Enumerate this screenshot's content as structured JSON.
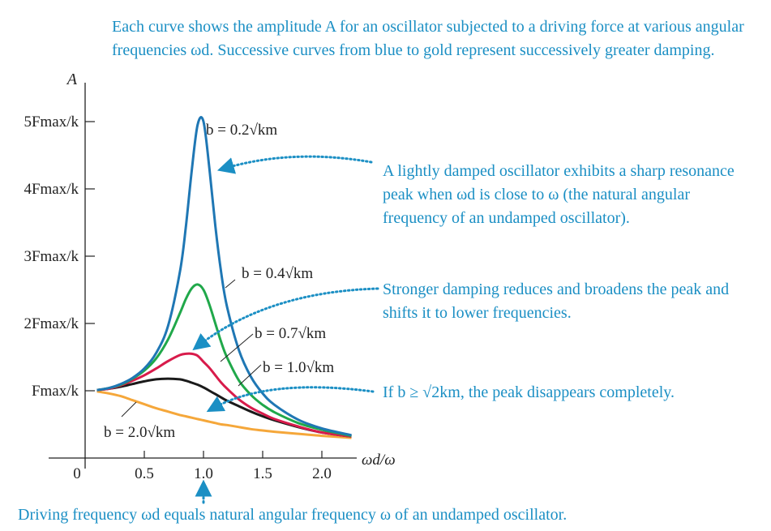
{
  "chart_data": {
    "type": "line",
    "title": "",
    "xlabel": "ωd/ω",
    "ylabel": "A",
    "xlim": [
      0,
      2.5
    ],
    "ylim": [
      0,
      5.6
    ],
    "x_origin_label": "0",
    "x_ticks": [
      {
        "value": 0.5,
        "label": "0.5"
      },
      {
        "value": 1.0,
        "label": "1.0"
      },
      {
        "value": 1.5,
        "label": "1.5"
      },
      {
        "value": 2.0,
        "label": "2.0"
      }
    ],
    "y_ticks": [
      {
        "value": 1,
        "label": "Fmax/k"
      },
      {
        "value": 2,
        "label": "2Fmax/k"
      },
      {
        "value": 3,
        "label": "3Fmax/k"
      },
      {
        "value": 4,
        "label": "4Fmax/k"
      },
      {
        "value": 5,
        "label": "5Fmax/k"
      }
    ],
    "x": [
      0.1,
      0.2,
      0.3,
      0.4,
      0.5,
      0.6,
      0.7,
      0.8,
      0.85,
      0.9,
      0.95,
      1.0,
      1.05,
      1.1,
      1.15,
      1.2,
      1.3,
      1.4,
      1.5,
      1.6,
      1.8,
      2.0,
      2.25
    ],
    "series": [
      {
        "name": "b = 0.2√km",
        "color": "#1f77b4",
        "values": [
          1.01,
          1.04,
          1.1,
          1.19,
          1.33,
          1.56,
          1.96,
          2.76,
          3.42,
          4.26,
          4.95,
          5.0,
          4.3,
          3.45,
          2.75,
          2.24,
          1.6,
          1.21,
          0.96,
          0.79,
          0.57,
          0.44,
          0.34
        ]
      },
      {
        "name": "b = 0.4√km",
        "color": "#20a84a",
        "values": [
          1.01,
          1.04,
          1.09,
          1.18,
          1.3,
          1.48,
          1.76,
          2.15,
          2.36,
          2.52,
          2.58,
          2.5,
          2.28,
          2.0,
          1.72,
          1.49,
          1.15,
          0.94,
          0.79,
          0.68,
          0.52,
          0.42,
          0.33
        ]
      },
      {
        "name": "b = 0.7√km",
        "color": "#d81b4b",
        "values": [
          1.01,
          1.03,
          1.08,
          1.15,
          1.23,
          1.33,
          1.44,
          1.53,
          1.55,
          1.55,
          1.52,
          1.43,
          1.34,
          1.23,
          1.12,
          1.03,
          0.87,
          0.75,
          0.66,
          0.58,
          0.47,
          0.38,
          0.32
        ]
      },
      {
        "name": "b = 1.0√km",
        "color": "#1a1a1a",
        "values": [
          1.01,
          1.03,
          1.06,
          1.1,
          1.14,
          1.17,
          1.18,
          1.17,
          1.15,
          1.12,
          1.09,
          1.05,
          1.0,
          0.95,
          0.9,
          0.85,
          0.77,
          0.69,
          0.62,
          0.56,
          0.46,
          0.38,
          0.32
        ]
      },
      {
        "name": "b = 2.0√km",
        "color": "#f5a73a",
        "values": [
          0.99,
          0.96,
          0.92,
          0.86,
          0.8,
          0.74,
          0.69,
          0.64,
          0.62,
          0.6,
          0.58,
          0.56,
          0.54,
          0.52,
          0.5,
          0.49,
          0.46,
          0.43,
          0.41,
          0.39,
          0.36,
          0.33,
          0.3
        ]
      }
    ],
    "curve_labels": [
      {
        "series": 0,
        "text": "b = 0.2√km"
      },
      {
        "series": 1,
        "text": "b = 0.4√km"
      },
      {
        "series": 2,
        "text": "b = 0.7√km"
      },
      {
        "series": 3,
        "text": "b = 1.0√km"
      },
      {
        "series": 4,
        "text": "b = 2.0√km"
      }
    ],
    "annotations": {
      "top": "Each curve shows the amplitude A for an oscillator subjected to a driving force at various angular frequencies ωd. Successive curves from blue to gold represent successively greater damping.",
      "sharp_peak": "A lightly damped oscillator exhibits a sharp resonance peak when ωd is close to ω (the natural angular frequency of an undamped oscillator).",
      "stronger_damping": "Stronger damping reduces and broadens the peak and shifts it to lower frequencies.",
      "disappears": "If b ≥ √2km, the peak disappears completely.",
      "bottom": "Driving frequency ωd equals natural angular frequency ω of an undamped oscillator."
    },
    "colors": {
      "annotation": "#1b8fc4",
      "axis": "#222222"
    }
  }
}
